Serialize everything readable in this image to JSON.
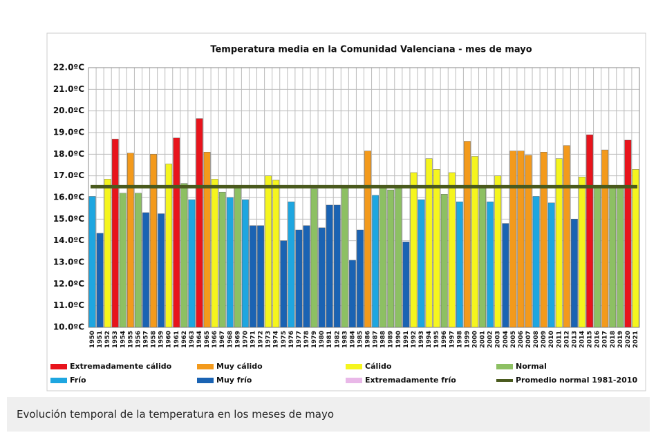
{
  "chart_data": {
    "type": "bar",
    "title": "Temperatura media en la Comunidad Valenciana - mes de mayo",
    "categories": [
      "1950",
      "1951",
      "1952",
      "1953",
      "1954",
      "1955",
      "1956",
      "1957",
      "1958",
      "1959",
      "1960",
      "1961",
      "1962",
      "1963",
      "1964",
      "1965",
      "1966",
      "1967",
      "1968",
      "1969",
      "1970",
      "1971",
      "1972",
      "1973",
      "1974",
      "1975",
      "1976",
      "1977",
      "1978",
      "1979",
      "1980",
      "1981",
      "1982",
      "1983",
      "1984",
      "1985",
      "1986",
      "1987",
      "1988",
      "1989",
      "1990",
      "1991",
      "1992",
      "1993",
      "1994",
      "1995",
      "1996",
      "1997",
      "1998",
      "1999",
      "2000",
      "2001",
      "2002",
      "2003",
      "2004",
      "2005",
      "2006",
      "2007",
      "2008",
      "2009",
      "2010",
      "2011",
      "2012",
      "2013",
      "2014",
      "2015",
      "2016",
      "2017",
      "2018",
      "2019",
      "2020",
      "2021"
    ],
    "series": [
      {
        "name": "Extremadamente cálido",
        "color": "#e8141c",
        "values": [
          null,
          null,
          null,
          18.7,
          null,
          null,
          null,
          null,
          null,
          null,
          null,
          18.75,
          null,
          null,
          19.65,
          null,
          null,
          null,
          null,
          null,
          null,
          null,
          null,
          null,
          null,
          null,
          null,
          null,
          null,
          null,
          null,
          null,
          null,
          null,
          null,
          null,
          null,
          null,
          null,
          null,
          null,
          null,
          null,
          null,
          null,
          null,
          null,
          null,
          null,
          null,
          null,
          null,
          null,
          null,
          null,
          null,
          null,
          null,
          null,
          null,
          null,
          null,
          null,
          null,
          null,
          18.9,
          null,
          null,
          null,
          null,
          18.65,
          null
        ]
      },
      {
        "name": "Muy cálido",
        "color": "#f39a1c",
        "values": [
          null,
          null,
          null,
          null,
          null,
          18.05,
          null,
          null,
          18.0,
          null,
          null,
          null,
          null,
          null,
          null,
          18.1,
          null,
          null,
          null,
          null,
          null,
          null,
          null,
          null,
          null,
          null,
          null,
          null,
          null,
          null,
          null,
          null,
          null,
          null,
          null,
          null,
          18.15,
          null,
          null,
          null,
          null,
          null,
          null,
          null,
          null,
          null,
          null,
          null,
          null,
          18.6,
          null,
          null,
          null,
          null,
          null,
          18.15,
          18.15,
          17.95,
          null,
          18.1,
          null,
          null,
          18.4,
          null,
          null,
          null,
          null,
          18.2,
          null,
          null,
          null,
          null
        ]
      },
      {
        "name": "Cálido",
        "color": "#f5f51e",
        "values": [
          null,
          null,
          16.85,
          null,
          null,
          null,
          null,
          null,
          null,
          null,
          17.55,
          null,
          null,
          null,
          null,
          null,
          16.85,
          null,
          null,
          null,
          null,
          null,
          null,
          17.0,
          16.8,
          null,
          null,
          null,
          null,
          null,
          null,
          null,
          null,
          null,
          null,
          null,
          null,
          null,
          null,
          null,
          null,
          null,
          17.15,
          null,
          17.8,
          17.3,
          null,
          17.15,
          null,
          null,
          17.9,
          null,
          null,
          17.0,
          null,
          null,
          null,
          null,
          null,
          null,
          null,
          17.8,
          null,
          null,
          16.95,
          null,
          null,
          null,
          null,
          null,
          null,
          17.3
        ]
      },
      {
        "name": "Normal",
        "color": "#8dc063",
        "values": [
          null,
          null,
          null,
          null,
          16.2,
          null,
          16.2,
          null,
          null,
          null,
          null,
          null,
          16.65,
          null,
          null,
          null,
          null,
          16.25,
          null,
          16.5,
          null,
          null,
          null,
          null,
          null,
          null,
          null,
          null,
          null,
          16.4,
          null,
          null,
          null,
          16.5,
          null,
          null,
          null,
          null,
          16.5,
          16.35,
          16.55,
          null,
          null,
          null,
          null,
          null,
          16.15,
          null,
          null,
          null,
          null,
          16.5,
          null,
          null,
          null,
          null,
          null,
          null,
          null,
          null,
          null,
          null,
          null,
          null,
          null,
          null,
          16.5,
          null,
          16.5,
          16.5,
          null,
          null
        ]
      },
      {
        "name": "Frío",
        "color": "#1ea6e0",
        "values": [
          16.05,
          null,
          null,
          null,
          null,
          null,
          null,
          null,
          null,
          null,
          null,
          null,
          null,
          15.9,
          null,
          null,
          null,
          null,
          16.0,
          null,
          15.9,
          null,
          null,
          null,
          null,
          null,
          15.8,
          null,
          null,
          null,
          null,
          null,
          null,
          null,
          null,
          null,
          null,
          16.1,
          null,
          null,
          null,
          null,
          null,
          15.9,
          null,
          null,
          null,
          null,
          15.8,
          null,
          null,
          null,
          15.8,
          null,
          null,
          null,
          null,
          null,
          16.05,
          null,
          15.75,
          null,
          null,
          null,
          null,
          null,
          null,
          null,
          null,
          null,
          null,
          null
        ]
      },
      {
        "name": "Muy frío",
        "color": "#1a63b3",
        "values": [
          null,
          14.35,
          null,
          null,
          null,
          null,
          null,
          15.3,
          null,
          15.25,
          null,
          null,
          null,
          null,
          null,
          null,
          null,
          null,
          null,
          null,
          null,
          14.7,
          14.7,
          null,
          null,
          14.0,
          null,
          14.5,
          14.7,
          null,
          14.6,
          15.65,
          15.65,
          null,
          13.1,
          14.5,
          null,
          null,
          null,
          null,
          null,
          13.95,
          null,
          null,
          null,
          null,
          null,
          null,
          null,
          null,
          null,
          null,
          null,
          null,
          14.8,
          null,
          null,
          null,
          null,
          null,
          null,
          null,
          null,
          15.0,
          null,
          null,
          null,
          null,
          null,
          null,
          null,
          null
        ]
      },
      {
        "name": "Extremadamente frío",
        "color": "#e9b8e8",
        "values": [
          null,
          null,
          null,
          null,
          null,
          null,
          null,
          null,
          null,
          null,
          null,
          null,
          null,
          null,
          null,
          null,
          null,
          null,
          null,
          null,
          null,
          null,
          null,
          null,
          null,
          null,
          null,
          null,
          null,
          null,
          null,
          null,
          null,
          null,
          null,
          null,
          null,
          null,
          null,
          null,
          null,
          null,
          null,
          null,
          null,
          null,
          null,
          null,
          null,
          null,
          null,
          null,
          null,
          null,
          null,
          null,
          null,
          null,
          null,
          null,
          null,
          null,
          null,
          null,
          null,
          null,
          null,
          null,
          null,
          null,
          null,
          null
        ]
      }
    ],
    "reference_line": {
      "name": "Promedio normal 1981-2010",
      "value": 16.5,
      "color": "#4a5a1e"
    },
    "ylim": [
      10,
      22
    ],
    "yticks": [
      {
        "value": 10,
        "label": "10.0ºC"
      },
      {
        "value": 11,
        "label": "11.0ºC"
      },
      {
        "value": 12,
        "label": "12.0ºC"
      },
      {
        "value": 13,
        "label": "13.0ºC"
      },
      {
        "value": 14,
        "label": "14.0ºC"
      },
      {
        "value": 15,
        "label": "15.0ºC"
      },
      {
        "value": 16,
        "label": "16.0ºC"
      },
      {
        "value": 17,
        "label": "17.0ºC"
      },
      {
        "value": 18,
        "label": "18.0ºC"
      },
      {
        "value": 19,
        "label": "19.0ºC"
      },
      {
        "value": 20,
        "label": "20.0ºC"
      },
      {
        "value": 21,
        "label": "21.0ºC"
      },
      {
        "value": 22,
        "label": "22.0ºC"
      }
    ],
    "grid": true
  },
  "caption": "Evolución temporal de la temperatura en los meses de mayo"
}
